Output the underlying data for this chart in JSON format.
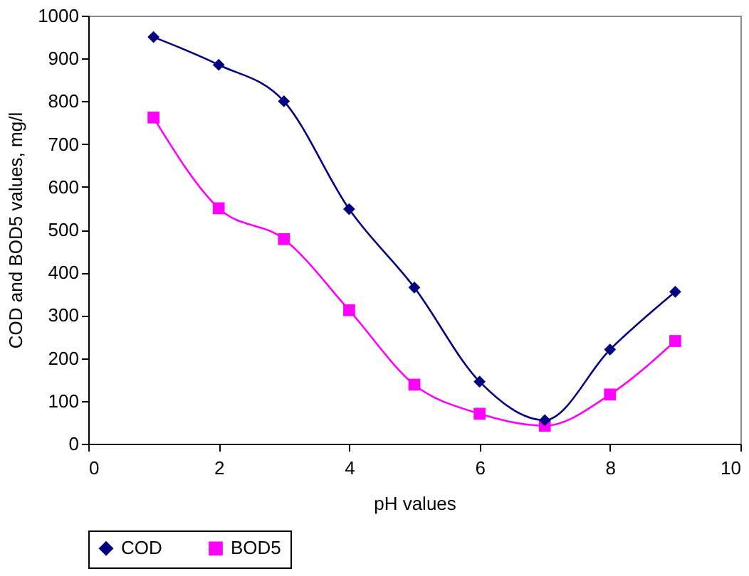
{
  "chart_data": {
    "type": "line",
    "xlabel": "pH values",
    "ylabel": "COD and BOD5 values, mg/l",
    "x": [
      1,
      2,
      3,
      4,
      5,
      6,
      7,
      8,
      9
    ],
    "xlim": [
      0,
      10
    ],
    "xticks": [
      0,
      2,
      4,
      6,
      8,
      10
    ],
    "ylim": [
      0,
      1000
    ],
    "yticks": [
      0,
      100,
      200,
      300,
      400,
      500,
      600,
      700,
      800,
      900,
      1000
    ],
    "grid": false,
    "legend": "bottom",
    "line_style": "solid",
    "series": [
      {
        "name": "COD",
        "color": "#000080",
        "marker": "diamond",
        "values": [
          950,
          885,
          800,
          548,
          365,
          145,
          55,
          220,
          355
        ]
      },
      {
        "name": "BOD5",
        "color": "#ff00ff",
        "marker": "square",
        "values": [
          762,
          550,
          478,
          312,
          138,
          70,
          42,
          115,
          240
        ]
      }
    ]
  }
}
